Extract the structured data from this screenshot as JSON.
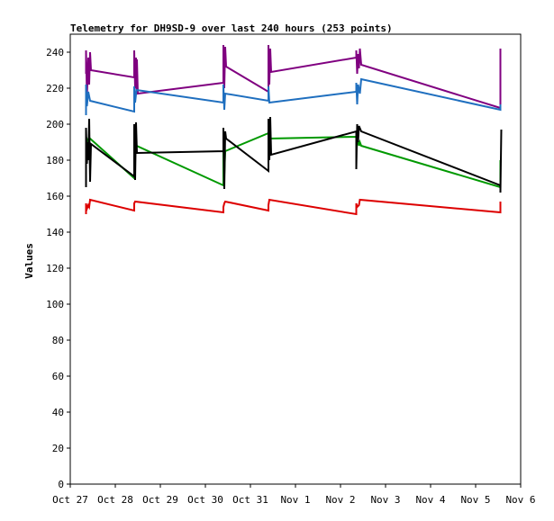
{
  "chart_data": {
    "type": "line",
    "title": "Telemetry for DH9SD-9 over last 240 hours (253 points)",
    "xlabel": "",
    "ylabel": "Values",
    "xlim": [
      0,
      10
    ],
    "ylim": [
      0,
      250
    ],
    "x_tick_labels": [
      "Oct 27",
      "Oct 28",
      "Oct 29",
      "Oct 30",
      "Oct 31",
      "Nov 1",
      "Nov 2",
      "Nov 3",
      "Nov 4",
      "Nov 5",
      "Nov 6"
    ],
    "y_ticks": [
      0,
      20,
      40,
      60,
      80,
      100,
      120,
      140,
      160,
      180,
      200,
      220,
      240
    ],
    "grid": false,
    "series": [
      {
        "name": "purple",
        "color": "#800080",
        "points": [
          [
            0.35,
            228
          ],
          [
            0.35,
            241
          ],
          [
            0.37,
            215
          ],
          [
            0.4,
            237
          ],
          [
            0.42,
            222
          ],
          [
            0.44,
            240
          ],
          [
            0.46,
            230
          ],
          [
            1.42,
            226
          ],
          [
            1.42,
            241
          ],
          [
            1.44,
            220
          ],
          [
            1.46,
            237
          ],
          [
            1.47,
            218
          ],
          [
            1.48,
            236
          ],
          [
            1.5,
            217
          ],
          [
            3.4,
            223
          ],
          [
            3.4,
            244
          ],
          [
            3.42,
            220
          ],
          [
            3.44,
            243
          ],
          [
            3.46,
            232
          ],
          [
            4.4,
            218
          ],
          [
            4.4,
            244
          ],
          [
            4.42,
            222
          ],
          [
            4.44,
            242
          ],
          [
            4.46,
            229
          ],
          [
            6.35,
            237
          ],
          [
            6.35,
            241
          ],
          [
            6.37,
            228
          ],
          [
            6.39,
            239
          ],
          [
            6.41,
            231
          ],
          [
            6.43,
            242
          ],
          [
            6.46,
            233
          ],
          [
            9.55,
            209
          ],
          [
            9.55,
            242
          ]
        ]
      },
      {
        "name": "blue",
        "color": "#1f6fbf",
        "points": [
          [
            0.35,
            205
          ],
          [
            0.35,
            222
          ],
          [
            0.37,
            210
          ],
          [
            0.4,
            218
          ],
          [
            0.44,
            213
          ],
          [
            1.42,
            207
          ],
          [
            1.42,
            221
          ],
          [
            1.44,
            212
          ],
          [
            1.47,
            219
          ],
          [
            3.4,
            212
          ],
          [
            3.4,
            222
          ],
          [
            3.42,
            208
          ],
          [
            3.44,
            217
          ],
          [
            4.4,
            213
          ],
          [
            4.4,
            221
          ],
          [
            4.42,
            212
          ],
          [
            6.35,
            218
          ],
          [
            6.35,
            223
          ],
          [
            6.37,
            211
          ],
          [
            6.39,
            222
          ],
          [
            6.43,
            217
          ],
          [
            6.46,
            225
          ],
          [
            9.55,
            208
          ],
          [
            9.55,
            211
          ]
        ]
      },
      {
        "name": "green",
        "color": "#009900",
        "points": [
          [
            0.35,
            187
          ],
          [
            0.35,
            193
          ],
          [
            0.4,
            190
          ],
          [
            0.44,
            192
          ],
          [
            1.42,
            170
          ],
          [
            1.42,
            186
          ],
          [
            1.44,
            183
          ],
          [
            1.47,
            188
          ],
          [
            3.4,
            166
          ],
          [
            3.4,
            195
          ],
          [
            3.42,
            172
          ],
          [
            3.44,
            185
          ],
          [
            4.4,
            195
          ],
          [
            4.4,
            190
          ],
          [
            4.42,
            192
          ],
          [
            6.35,
            193
          ],
          [
            6.35,
            194
          ],
          [
            6.37,
            192
          ],
          [
            6.41,
            188
          ],
          [
            6.43,
            190
          ],
          [
            6.46,
            188
          ],
          [
            9.55,
            165
          ],
          [
            9.55,
            180
          ]
        ]
      },
      {
        "name": "black",
        "color": "#000000",
        "points": [
          [
            0.35,
            165
          ],
          [
            0.35,
            198
          ],
          [
            0.37,
            178
          ],
          [
            0.39,
            190
          ],
          [
            0.4,
            180
          ],
          [
            0.42,
            203
          ],
          [
            0.44,
            168
          ],
          [
            0.46,
            189
          ],
          [
            1.42,
            171
          ],
          [
            1.42,
            200
          ],
          [
            1.44,
            169
          ],
          [
            1.46,
            201
          ],
          [
            1.48,
            184
          ],
          [
            3.4,
            185
          ],
          [
            3.4,
            198
          ],
          [
            3.42,
            164
          ],
          [
            3.44,
            196
          ],
          [
            3.46,
            192
          ],
          [
            4.4,
            174
          ],
          [
            4.4,
            203
          ],
          [
            4.42,
            180
          ],
          [
            4.44,
            204
          ],
          [
            4.46,
            183
          ],
          [
            6.35,
            196
          ],
          [
            6.35,
            175
          ],
          [
            6.37,
            200
          ],
          [
            6.39,
            190
          ],
          [
            6.41,
            199
          ],
          [
            6.46,
            196
          ],
          [
            9.55,
            166
          ],
          [
            9.55,
            162
          ],
          [
            9.57,
            197
          ]
        ]
      },
      {
        "name": "red",
        "color": "#dd0000",
        "points": [
          [
            0.35,
            150
          ],
          [
            0.35,
            156
          ],
          [
            0.37,
            153
          ],
          [
            0.4,
            155
          ],
          [
            0.42,
            154
          ],
          [
            0.44,
            158
          ],
          [
            1.42,
            152
          ],
          [
            1.42,
            156
          ],
          [
            1.44,
            157
          ],
          [
            3.4,
            151
          ],
          [
            3.4,
            154
          ],
          [
            3.42,
            156
          ],
          [
            3.44,
            157
          ],
          [
            4.4,
            152
          ],
          [
            4.4,
            155
          ],
          [
            4.42,
            158
          ],
          [
            6.35,
            150
          ],
          [
            6.35,
            156
          ],
          [
            6.37,
            154
          ],
          [
            6.41,
            155
          ],
          [
            6.43,
            158
          ],
          [
            9.55,
            151
          ],
          [
            9.55,
            157
          ]
        ]
      }
    ]
  }
}
